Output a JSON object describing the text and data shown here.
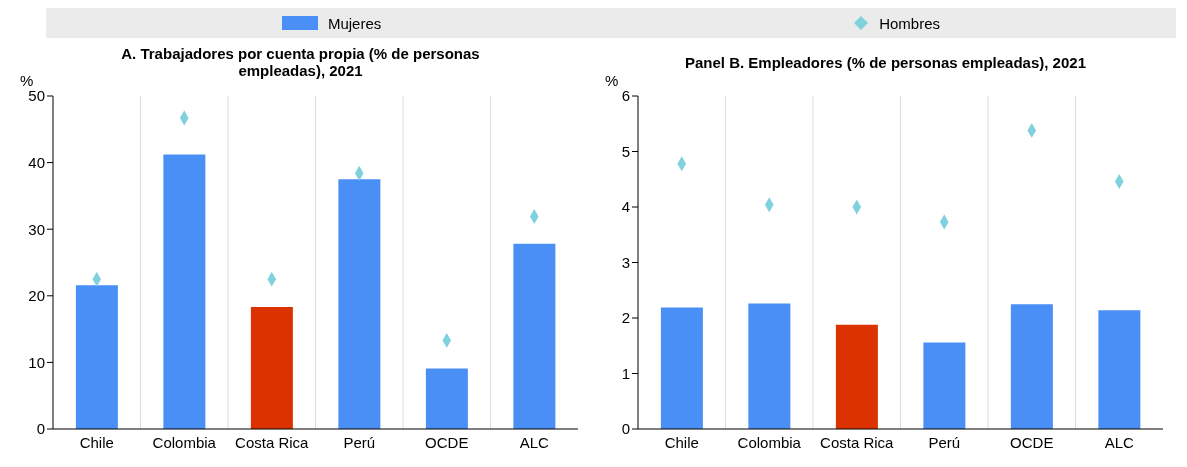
{
  "chart_data": [
    {
      "type": "bar",
      "title": "A. Trabajadores por cuenta propia (% de personas empleadas), 2021",
      "ylabel": "%",
      "categories": [
        "Chile",
        "Colombia",
        "Costa Rica",
        "Perú",
        "OCDE",
        "ALC"
      ],
      "legend": "top",
      "grid": "x",
      "marker": "diamond",
      "ylim": [
        0,
        50
      ],
      "yticks": [
        0,
        10,
        20,
        30,
        40,
        50
      ],
      "series": [
        {
          "name": "Mujeres",
          "color": "#4a8ff5",
          "colors": [
            "#4a8ff5",
            "#4a8ff5",
            "#dc3200",
            "#4a8ff5",
            "#4a8ff5",
            "#4a8ff5"
          ],
          "values": [
            21.6,
            41.2,
            18.3,
            37.5,
            9.1,
            27.8
          ]
        },
        {
          "name": "Hombres",
          "type": "scatter",
          "color": "#7fd1dd",
          "values": [
            22.5,
            46.7,
            22.5,
            38.4,
            13.3,
            31.9
          ]
        }
      ]
    },
    {
      "type": "bar",
      "title": "Panel B. Empleadores (% de personas empleadas), 2021",
      "ylabel": "%",
      "categories": [
        "Chile",
        "Colombia",
        "Costa Rica",
        "Perú",
        "OCDE",
        "ALC"
      ],
      "grid": "x",
      "marker": "diamond",
      "ylim": [
        0,
        6
      ],
      "yticks": [
        0,
        1,
        2,
        3,
        4,
        5,
        6
      ],
      "series": [
        {
          "color": "#4a8ff5",
          "colors": [
            "#4a8ff5",
            "#4a8ff5",
            "#dc3200",
            "#4a8ff5",
            "#4a8ff5",
            "#4a8ff5"
          ],
          "values": [
            2.19,
            2.26,
            1.88,
            1.56,
            2.25,
            2.14
          ]
        },
        {
          "type": "scatter",
          "color": "#7fd1dd",
          "values": [
            4.78,
            4.04,
            4.0,
            3.73,
            5.38,
            4.46
          ]
        }
      ]
    }
  ]
}
